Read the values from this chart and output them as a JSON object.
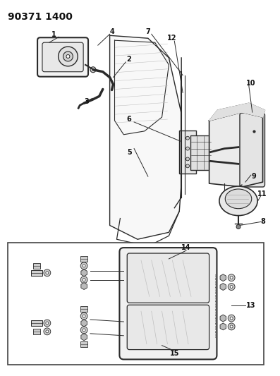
{
  "title": "90371 1400",
  "bg_color": "#ffffff",
  "title_fontsize": 10,
  "fig_width": 3.97,
  "fig_height": 5.33,
  "dpi": 100,
  "line_color": "#2a2a2a",
  "label_fontsize": 7
}
